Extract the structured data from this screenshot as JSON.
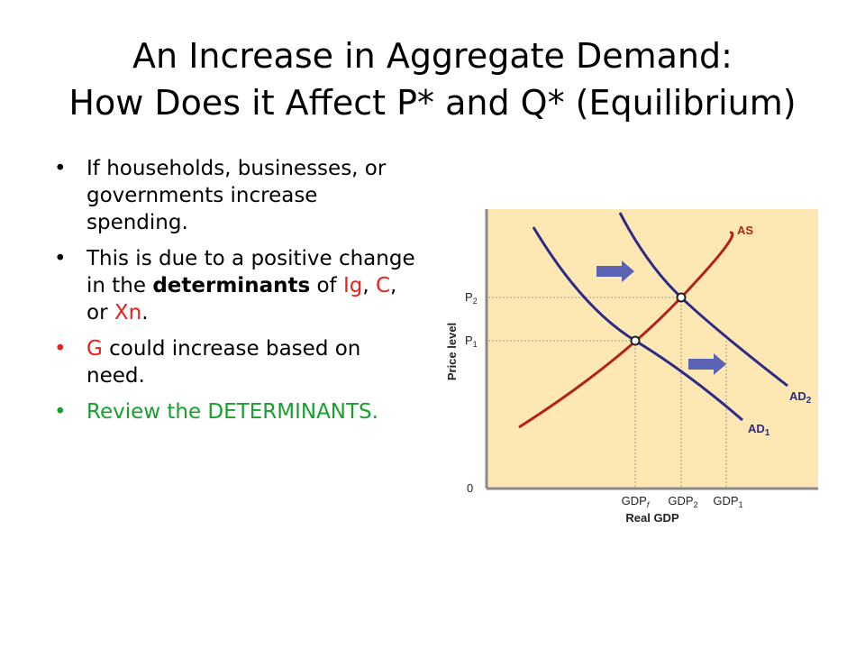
{
  "title": {
    "line1": "An Increase in Aggregate Demand:",
    "line2": "How Does it Affect P* and Q* (Equilibrium)"
  },
  "bullets": [
    {
      "text": "If households, businesses, or governments increase spending.",
      "color": "#000000"
    },
    {
      "parts": [
        "This is due to a positive change in the ",
        "determinants",
        " of ",
        "Ig",
        ", ",
        "C",
        ", or ",
        "Xn",
        "."
      ],
      "color": "#000000"
    },
    {
      "parts": [
        "G",
        " could increase based on need."
      ],
      "color": "#e8221a"
    },
    {
      "text": "Review the DETERMINANTS.",
      "color": "#18a02e"
    }
  ],
  "chart_data": {
    "type": "line",
    "xlabel": "Real GDP",
    "ylabel": "Price level",
    "origin_label": "0",
    "x_ticks": [
      "GDP",
      "GDP",
      "GDP"
    ],
    "x_tick_subs": [
      "f",
      "2",
      "1"
    ],
    "y_ticks": [
      "P",
      "P"
    ],
    "y_tick_subs": [
      "1",
      "2"
    ],
    "series": [
      {
        "name": "AS",
        "color": "#b3211c"
      },
      {
        "name": "AD",
        "sub": "1",
        "color": "#2e2a87"
      },
      {
        "name": "AD",
        "sub": "2",
        "color": "#2e2a87"
      }
    ],
    "equilibria": [
      {
        "x_tick": "GDP_f",
        "y_tick": "P_1"
      },
      {
        "x_tick": "GDP_2",
        "y_tick": "P_2"
      }
    ],
    "shift_direction": "right",
    "colors": {
      "background": "#fde8b4",
      "axis": "#8a8a8a",
      "arrow": "#5b63b4"
    }
  }
}
